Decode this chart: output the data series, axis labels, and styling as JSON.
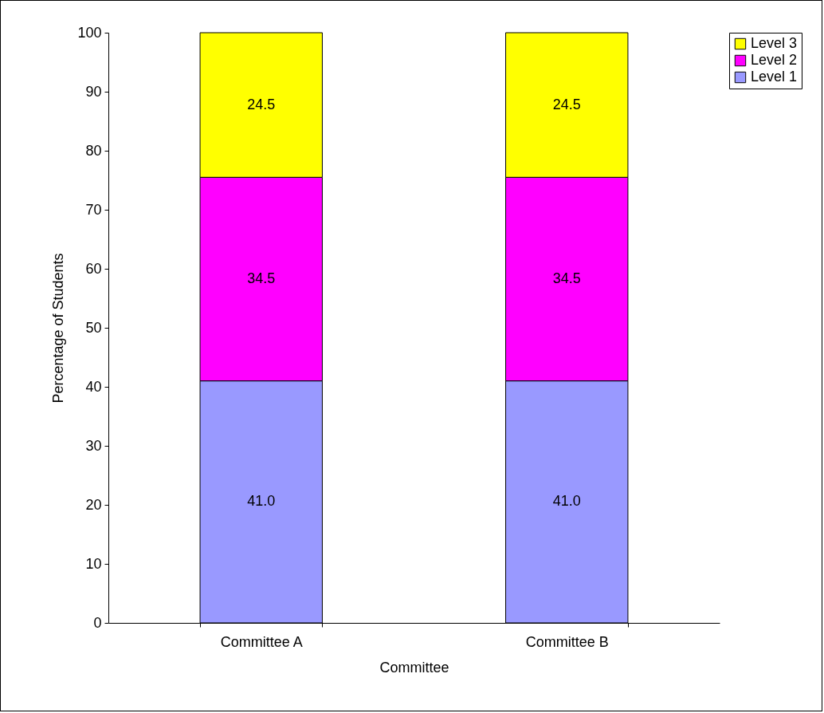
{
  "chart_data": {
    "type": "bar",
    "stacked": true,
    "xlabel": "Committee",
    "ylabel": "Percentage of Students",
    "categories": [
      "Committee A",
      "Committee B"
    ],
    "series": [
      {
        "name": "Level 1",
        "color": "#9999ff",
        "values": [
          41.0,
          41.0
        ],
        "value_labels": [
          "41.0",
          "41.0"
        ]
      },
      {
        "name": "Level 2",
        "color": "#ff00ff",
        "values": [
          34.5,
          34.5
        ],
        "value_labels": [
          "34.5",
          "34.5"
        ]
      },
      {
        "name": "Level 3",
        "color": "#ffff00",
        "values": [
          24.5,
          24.5
        ],
        "value_labels": [
          "24.5",
          "24.5"
        ]
      }
    ],
    "ylim": [
      0,
      100
    ],
    "yticks": [
      0,
      10,
      20,
      30,
      40,
      50,
      60,
      70,
      80,
      90,
      100
    ],
    "grid": false,
    "legend": "right"
  }
}
